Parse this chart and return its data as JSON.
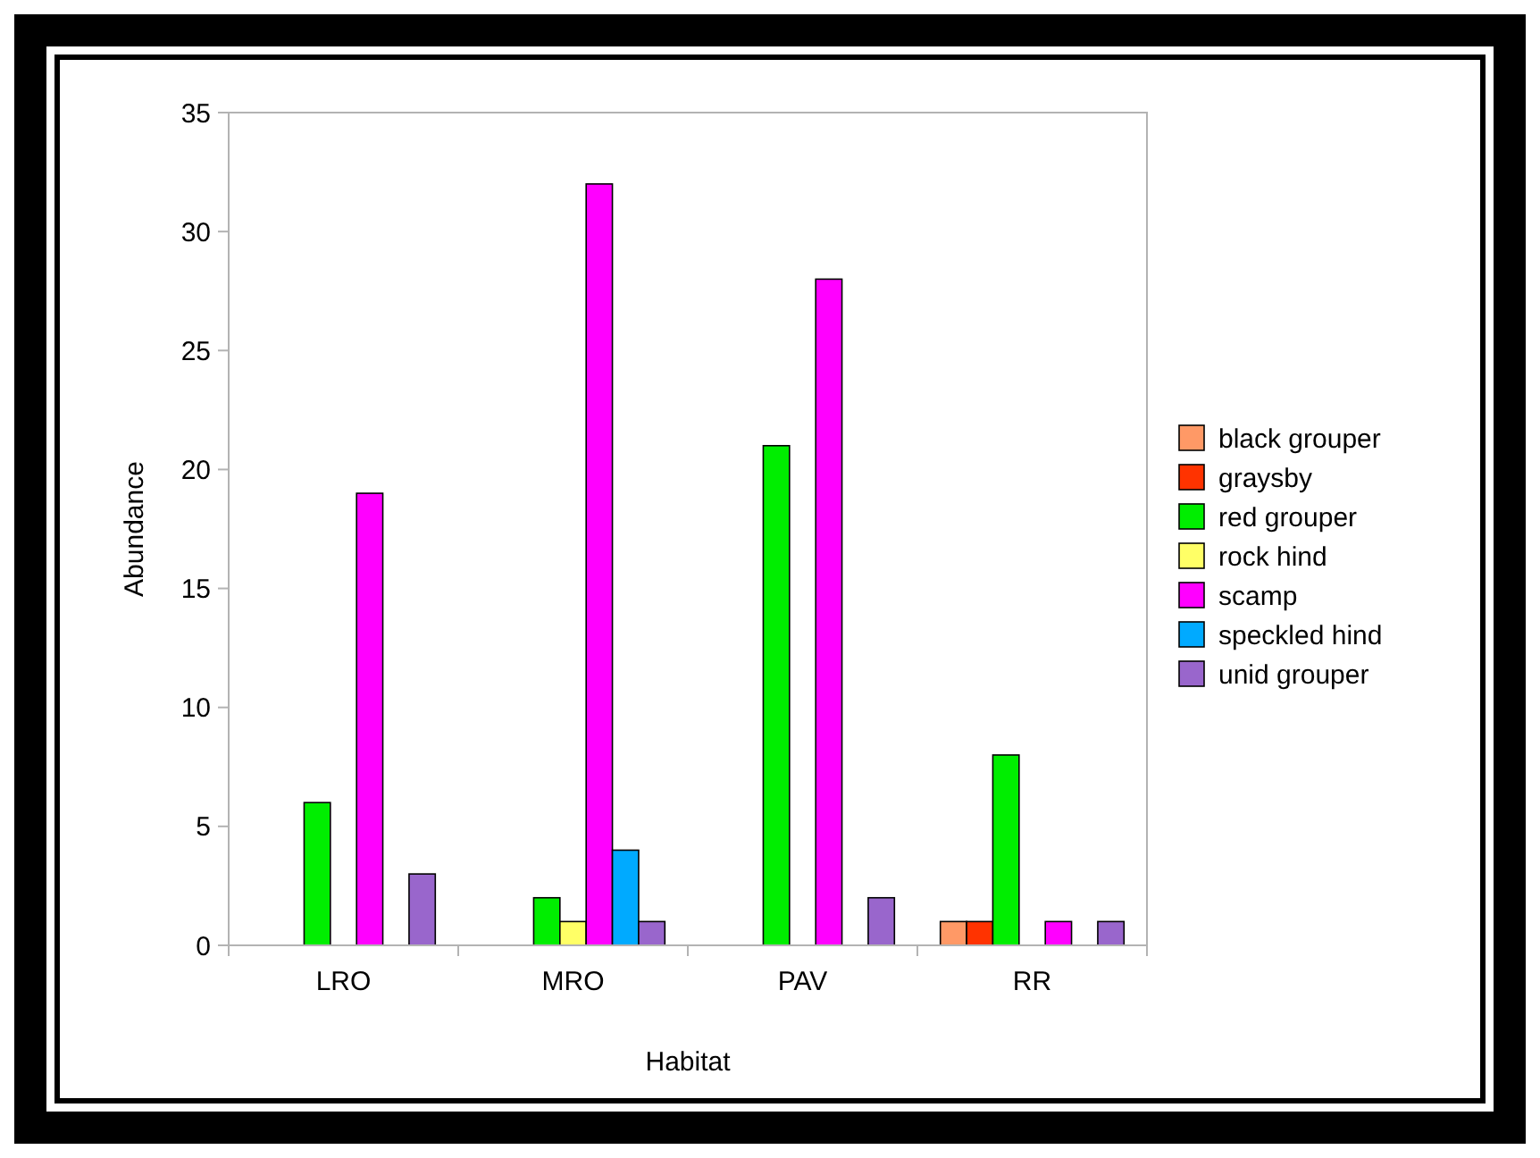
{
  "chart_data": {
    "type": "bar",
    "xlabel": "Habitat",
    "ylabel": "Abundance",
    "categories": [
      "LRO",
      "MRO",
      "PAV",
      "RR"
    ],
    "series": [
      {
        "name": "black grouper",
        "color": "#ff9966",
        "values": [
          0,
          0,
          0,
          1
        ]
      },
      {
        "name": "graysby",
        "color": "#ff3300",
        "values": [
          0,
          0,
          0,
          1
        ]
      },
      {
        "name": "red grouper",
        "color": "#00ee00",
        "values": [
          6,
          2,
          21,
          8
        ]
      },
      {
        "name": "rock hind",
        "color": "#ffff66",
        "values": [
          0,
          1,
          0,
          0
        ]
      },
      {
        "name": "scamp",
        "color": "#ff00ff",
        "values": [
          19,
          32,
          28,
          1
        ]
      },
      {
        "name": "speckled hind",
        "color": "#00aaff",
        "values": [
          0,
          4,
          0,
          0
        ]
      },
      {
        "name": "unid grouper",
        "color": "#9966cc",
        "values": [
          3,
          1,
          2,
          1
        ]
      }
    ],
    "ylim": [
      0,
      35
    ],
    "yticks": [
      0,
      5,
      10,
      15,
      20,
      25,
      30,
      35
    ],
    "grid": false,
    "legend": "right"
  }
}
